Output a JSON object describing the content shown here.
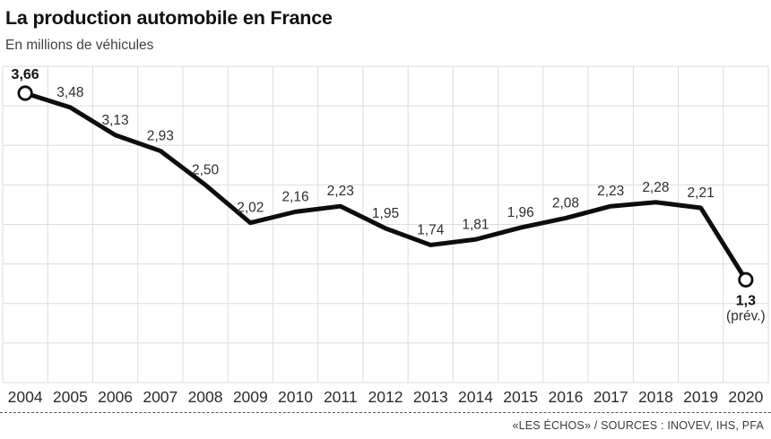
{
  "header": {
    "title": "La production automobile en France",
    "subtitle": "En millions de véhicules"
  },
  "chart_data": {
    "type": "line",
    "title": "La production automobile en France",
    "unit_note": "En millions de véhicules",
    "x": [
      "2004",
      "2005",
      "2006",
      "2007",
      "2008",
      "2009",
      "2010",
      "2011",
      "2012",
      "2013",
      "2014",
      "2015",
      "2016",
      "2017",
      "2018",
      "2019",
      "2020"
    ],
    "values": [
      3.66,
      3.48,
      3.13,
      2.93,
      2.5,
      2.02,
      2.16,
      2.23,
      1.95,
      1.74,
      1.81,
      1.96,
      2.08,
      2.23,
      2.28,
      2.21,
      1.3
    ],
    "value_labels": [
      "3,66",
      "3,48",
      "3,13",
      "2,93",
      "2,50",
      "2,02",
      "2,16",
      "2,23",
      "1,95",
      "1,74",
      "1,81",
      "1,96",
      "2,08",
      "2,23",
      "2,28",
      "2,21",
      "1,3"
    ],
    "last_point_note": "(prév.)",
    "ylim": [
      0,
      4
    ],
    "grid_rows": 8,
    "grid": true,
    "legend": "none",
    "markers": "open circle on first and last point",
    "colors": {
      "line": "#0d0d0d",
      "grid": "#dcdcdc",
      "value_label": "#2e2e2e",
      "value_label_emphasis": "#111111",
      "axis_label": "#2b2b2b",
      "background": "#ffffff"
    }
  },
  "footer": {
    "source": "«LES ÉCHOS» / SOURCES : INOVEV, IHS, PFA"
  }
}
